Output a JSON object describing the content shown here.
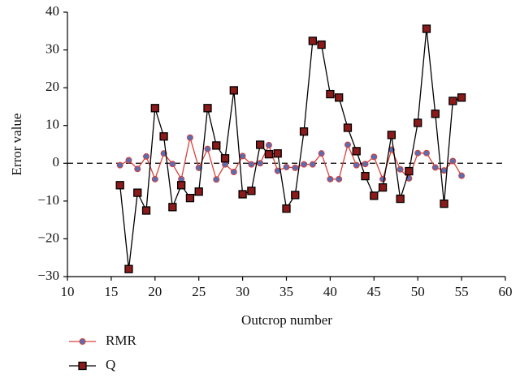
{
  "chart_data": {
    "type": "line",
    "xlabel": "Outcrop number",
    "ylabel": "Error value",
    "x": [
      16,
      17,
      18,
      19,
      20,
      21,
      22,
      23,
      24,
      25,
      26,
      27,
      28,
      29,
      30,
      31,
      32,
      33,
      34,
      35,
      36,
      37,
      38,
      39,
      40,
      41,
      42,
      43,
      44,
      45,
      46,
      47,
      48,
      49,
      50,
      51,
      52,
      53,
      54,
      55
    ],
    "series": [
      {
        "name": "RMR",
        "color": "#d9413a",
        "marker": "circle",
        "marker_color": "#5a6db3",
        "values": [
          -0.5,
          0.8,
          -1.5,
          1.8,
          -4.2,
          2.6,
          -0.2,
          -4.2,
          6.8,
          -1.2,
          3.8,
          -4.3,
          -0.3,
          -2.3,
          1.9,
          -0.3,
          0,
          4.8,
          -2,
          -1,
          -1.2,
          -0.3,
          -0.3,
          2.6,
          -4.2,
          -4.2,
          4.9,
          -0.5,
          -0.2,
          1.7,
          -4.2,
          3.6,
          -1.6,
          -4,
          2.7,
          2.7,
          -1.1,
          -1.9,
          0.6,
          -3.3
        ]
      },
      {
        "name": "Q",
        "color": "#000000",
        "marker": "square",
        "marker_color": "#8b1a1a",
        "values": [
          -5.8,
          -28,
          -7.8,
          -12.5,
          14.6,
          7.1,
          -11.6,
          -5.8,
          -9.2,
          -7.5,
          14.6,
          4.7,
          1.3,
          19.3,
          -8.2,
          -7.3,
          4.9,
          2.4,
          2.6,
          -12,
          -8.4,
          8.4,
          32.4,
          31.4,
          18.3,
          17.4,
          9.4,
          3.2,
          -3.4,
          -8.6,
          -6.4,
          7.5,
          -9.4,
          -2.1,
          10.7,
          35.6,
          13.1,
          -10.7,
          16.5,
          17.4
        ]
      }
    ],
    "xlim": [
      10,
      60
    ],
    "xticks": [
      10,
      15,
      20,
      25,
      30,
      35,
      40,
      45,
      50,
      55,
      60
    ],
    "ylim": [
      -30,
      40
    ],
    "yticks": [
      {
        "value": -30,
        "label": "−30"
      },
      {
        "value": -20,
        "label": "−20"
      },
      {
        "value": -10,
        "label": "−10"
      },
      0,
      10,
      20,
      30,
      40
    ],
    "reference_line": 0,
    "legend": "bottom-left"
  }
}
